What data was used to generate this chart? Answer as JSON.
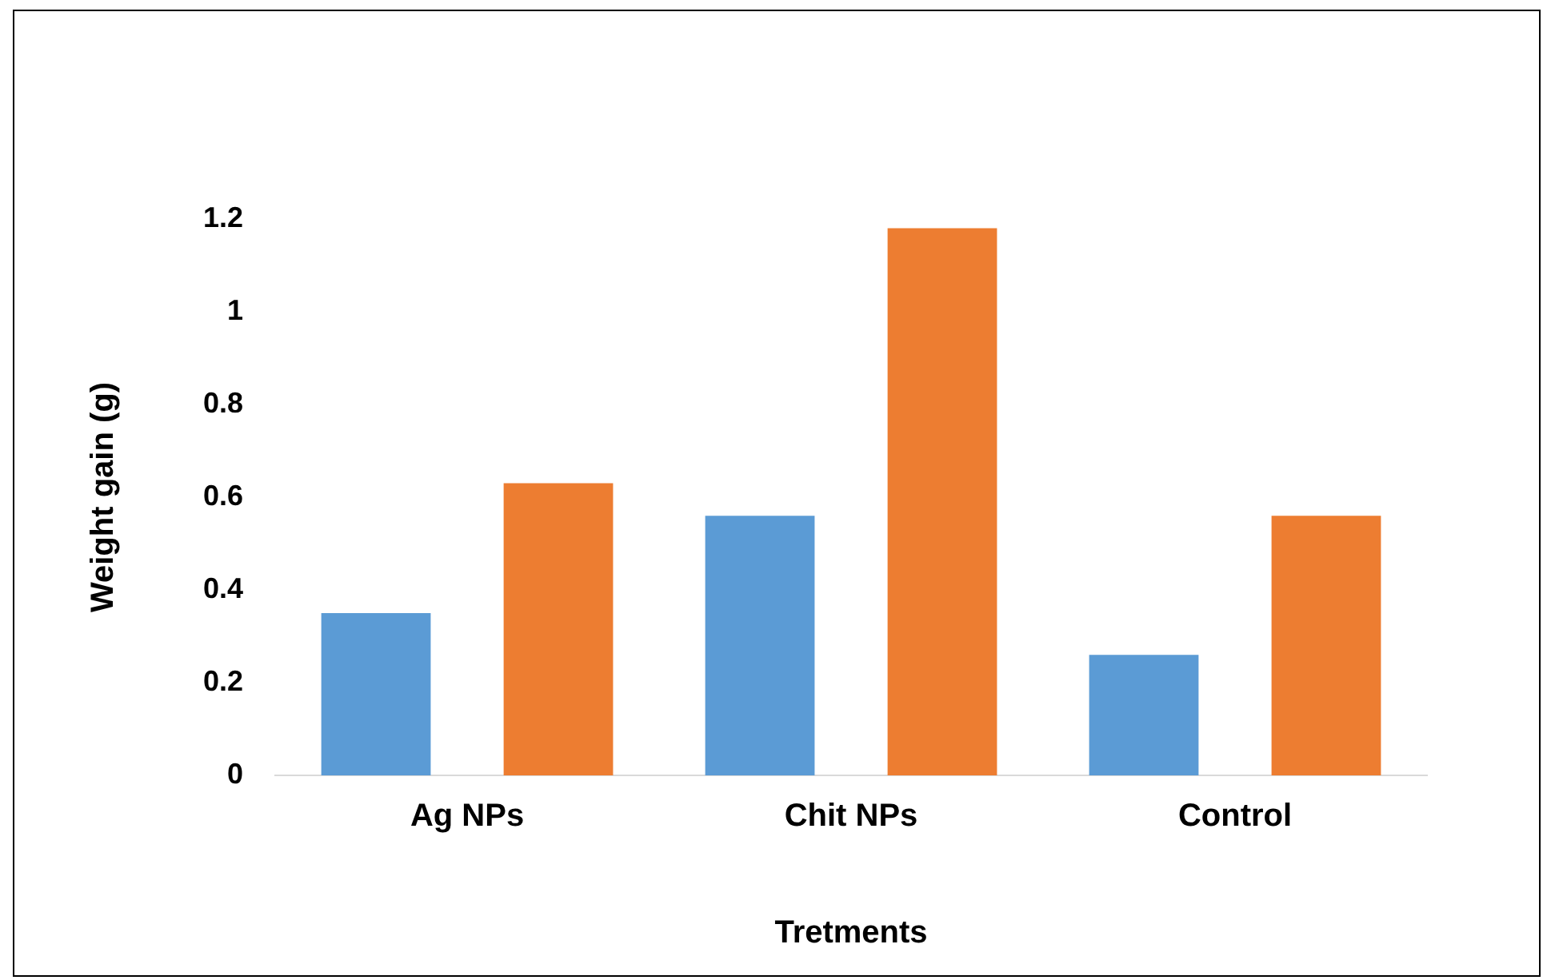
{
  "chart_data": {
    "type": "bar",
    "xlabel": "Tretments",
    "ylabel": "Weight gain (g)",
    "categories": [
      "Ag NPs",
      "Chit NPs",
      "Control"
    ],
    "series": [
      {
        "color": "#5b9bd5",
        "values": [
          0.35,
          0.56,
          0.26
        ]
      },
      {
        "color": "#ed7d31",
        "values": [
          0.63,
          1.18,
          0.56
        ]
      }
    ],
    "ylim": [
      0,
      1.2
    ],
    "yticks": [
      0,
      0.2,
      0.4,
      0.6,
      0.8,
      1,
      1.2
    ],
    "grid": false,
    "legend": false
  }
}
